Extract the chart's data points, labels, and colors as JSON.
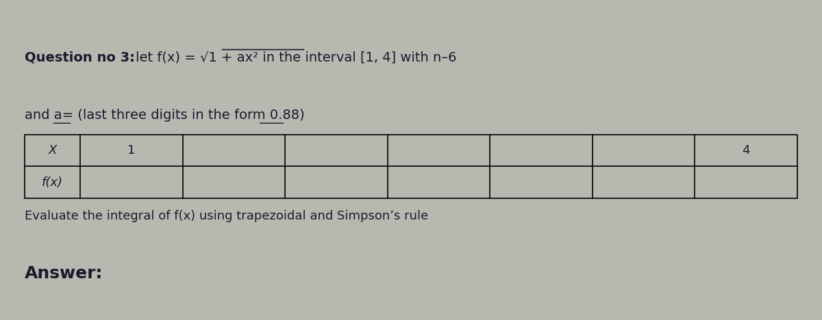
{
  "background_color": "#b8b8b0",
  "text_color": "#1a1a2e",
  "bold_part": "Question no 3: ",
  "normal_part": "let f(x) = √1 + ax² in the interval [1, 4] with n=6",
  "line2": "and a= (last three digits in the form 0.88)",
  "table_row1": [
    "X",
    "1",
    "",
    "",
    "",
    "",
    "",
    "4"
  ],
  "table_row2": [
    "f(x)",
    "",
    "",
    "",
    "",
    "",
    "",
    ""
  ],
  "eval_text": "Evaluate the integral of f(x) using trapezoidal and Simpson’s rule",
  "answer_text": "Answer:",
  "font_size_main": 14,
  "font_size_table": 13,
  "font_size_eval": 13,
  "font_size_answer": 18
}
